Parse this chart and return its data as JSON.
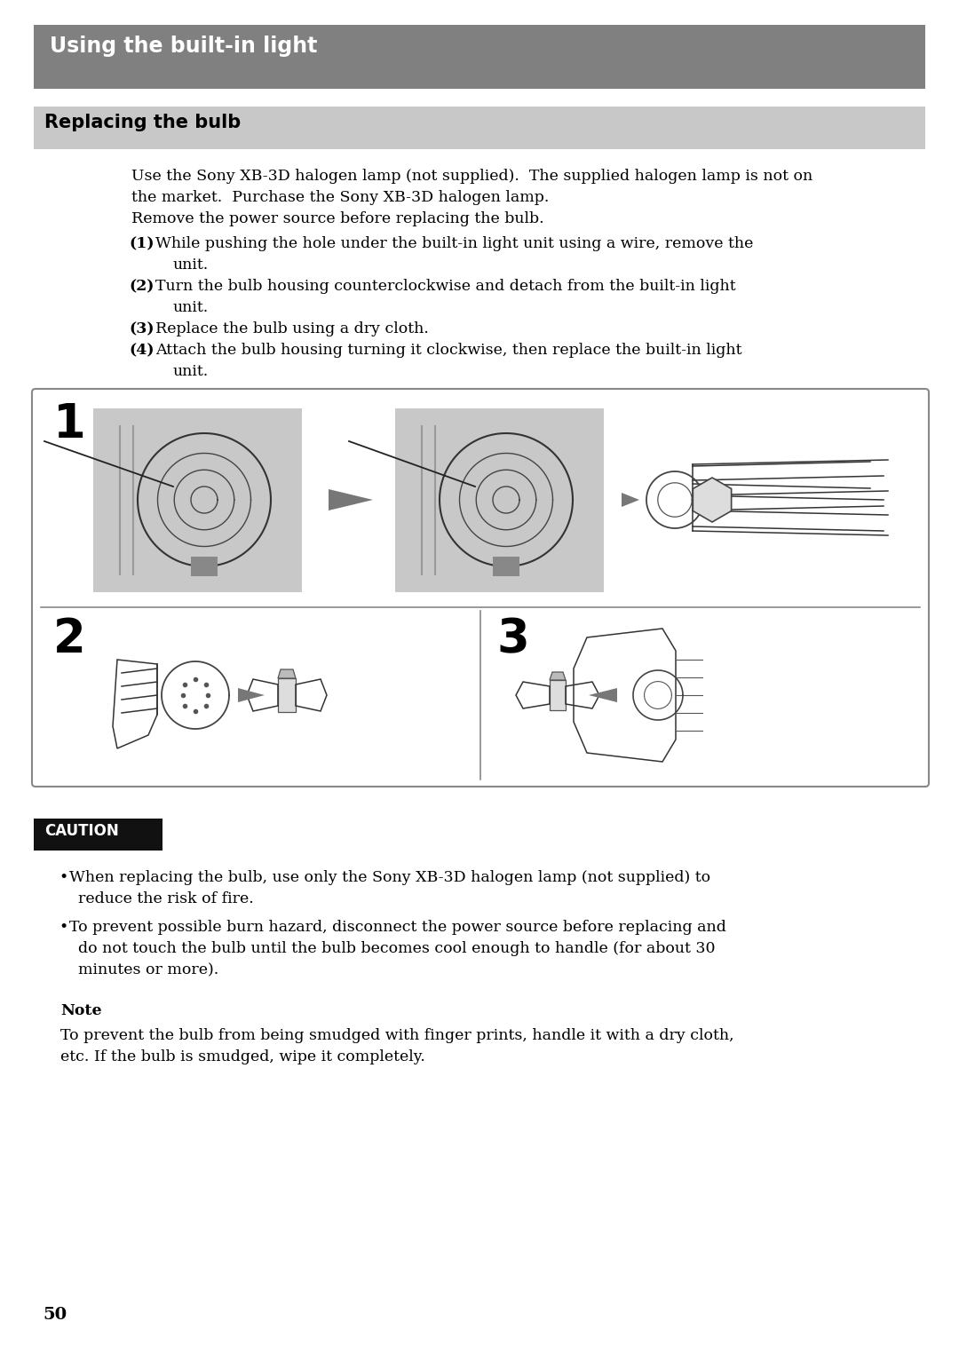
{
  "page_bg": "#ffffff",
  "header_bg": "#808080",
  "header_text": "Using the built-in light",
  "header_text_color": "#ffffff",
  "subheader_bg": "#c8c8c8",
  "subheader_text": "Replacing the bulb",
  "subheader_text_color": "#000000",
  "body_text_color": "#000000",
  "intro_lines": [
    "Use the Sony XB-3D halogen lamp (not supplied).  The supplied halogen lamp is not on",
    "the market.  Purchase the Sony XB-3D halogen lamp.",
    "Remove the power source before replacing the bulb."
  ],
  "steps": [
    {
      "num": "(1)",
      "line1": "While pushing the hole under the built-in light unit using a wire, remove the",
      "line2": "unit."
    },
    {
      "num": "(2)",
      "line1": "Turn the bulb housing counterclockwise and detach from the built-in light",
      "line2": "unit."
    },
    {
      "num": "(3)",
      "line1": "Replace the bulb using a dry cloth.",
      "line2": ""
    },
    {
      "num": "(4)",
      "line1": "Attach the bulb housing turning it clockwise, then replace the built-in light",
      "line2": "unit."
    }
  ],
  "caution_bg": "#111111",
  "caution_text": "CAUTION",
  "caution_text_color": "#ffffff",
  "bullet1_line1": "When replacing the bulb, use only the Sony XB-3D halogen lamp (not supplied) to",
  "bullet1_line2": "reduce the risk of fire.",
  "bullet2_line1": "To prevent possible burn hazard, disconnect the power source before replacing and",
  "bullet2_line2": "do not touch the bulb until the bulb becomes cool enough to handle (for about 30",
  "bullet2_line3": "minutes or more).",
  "note_title": "Note",
  "note_line1": "To prevent the bulb from being smudged with finger prints, handle it with a dry cloth,",
  "note_line2": "etc. If the bulb is smudged, wipe it completely.",
  "page_num": "50",
  "diagram_border_color": "#888888",
  "arrow_color": "#777777"
}
